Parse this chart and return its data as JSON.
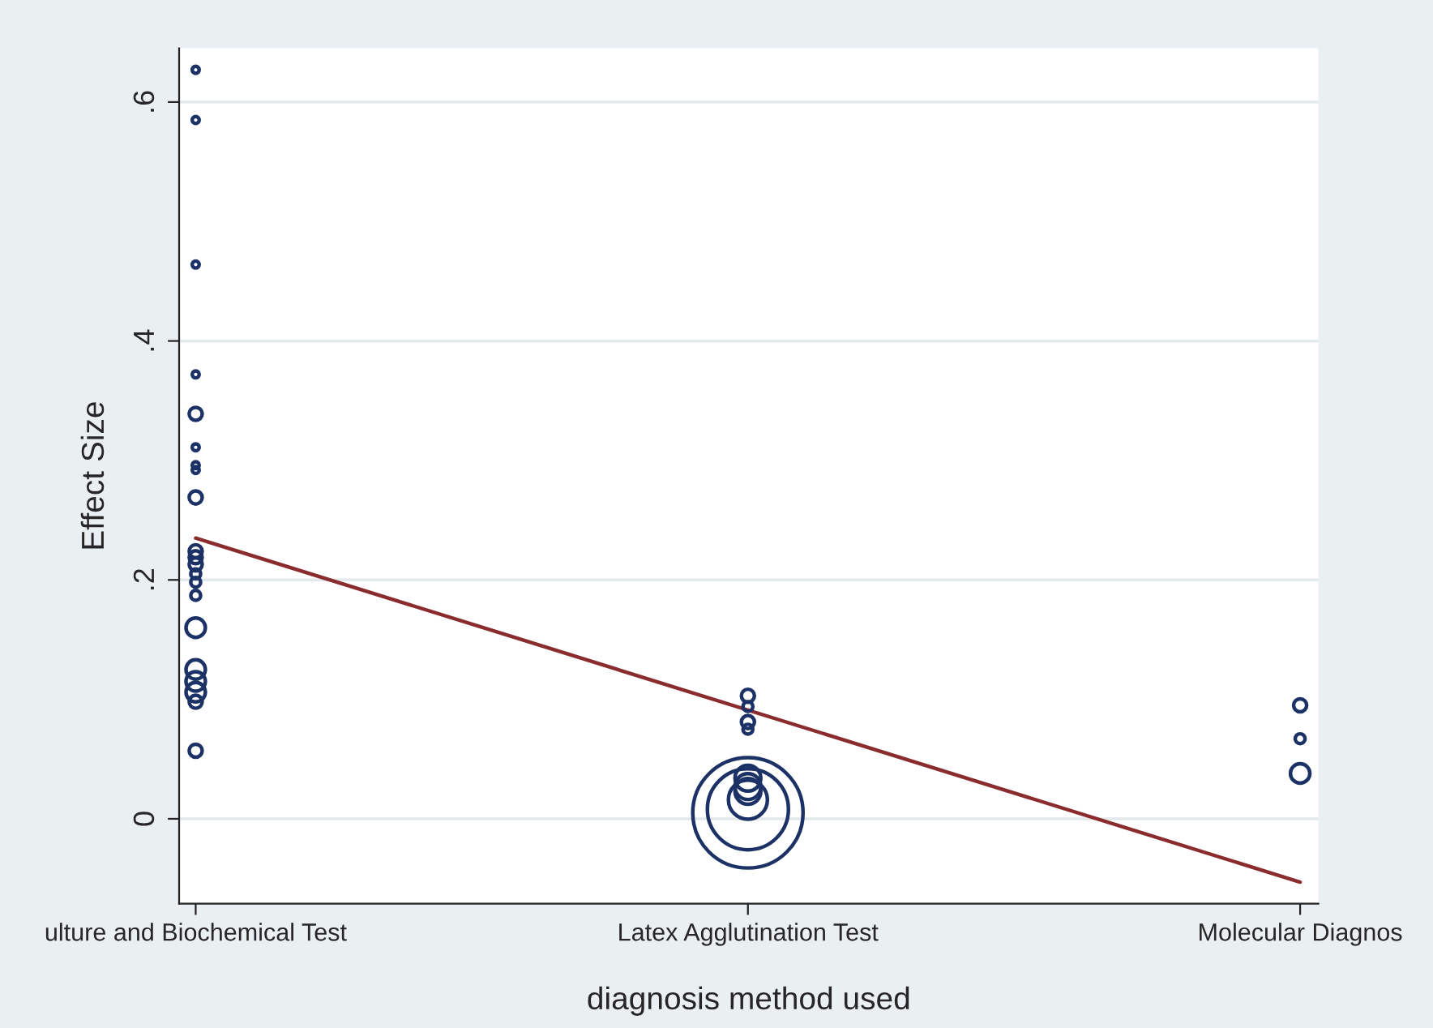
{
  "chart_data": {
    "type": "bubble",
    "xlabel": "diagnosis method used",
    "ylabel": "Effect Size",
    "categories": [
      "ulture and Biochemical Test",
      "Latex Agglutination Test",
      "Molecular Diagnos"
    ],
    "series": [
      {
        "color": "#1c3266",
        "x": [
          "ulture and Biochemical Test",
          "ulture and Biochemical Test",
          "ulture and Biochemical Test",
          "ulture and Biochemical Test",
          "ulture and Biochemical Test",
          "ulture and Biochemical Test",
          "ulture and Biochemical Test",
          "ulture and Biochemical Test",
          "ulture and Biochemical Test",
          "ulture and Biochemical Test",
          "ulture and Biochemical Test",
          "ulture and Biochemical Test",
          "ulture and Biochemical Test",
          "ulture and Biochemical Test",
          "ulture and Biochemical Test",
          "ulture and Biochemical Test",
          "ulture and Biochemical Test",
          "ulture and Biochemical Test",
          "ulture and Biochemical Test",
          "ulture and Biochemical Test",
          "ulture and Biochemical Test",
          "Latex Agglutination Test",
          "Latex Agglutination Test",
          "Latex Agglutination Test",
          "Latex Agglutination Test",
          "Latex Agglutination Test",
          "Latex Agglutination Test",
          "Latex Agglutination Test",
          "Latex Agglutination Test",
          "Latex Agglutination Test",
          "Latex Agglutination Test",
          "Molecular Diagnos",
          "Molecular Diagnos",
          "Molecular Diagnos"
        ],
        "values": [
          0.627,
          0.585,
          0.464,
          0.372,
          0.339,
          0.311,
          0.296,
          0.292,
          0.269,
          0.224,
          0.219,
          0.213,
          0.205,
          0.198,
          0.187,
          0.16,
          0.125,
          0.115,
          0.106,
          0.098,
          0.057,
          0.103,
          0.094,
          0.081,
          0.075,
          0.034,
          0.027,
          0.023,
          0.016,
          0.008,
          0.005,
          0.095,
          0.067,
          0.038
        ],
        "sizes": [
          0.004,
          0.004,
          0.004,
          0.004,
          0.014,
          0.004,
          0.004,
          0.004,
          0.014,
          0.014,
          0.014,
          0.014,
          0.008,
          0.008,
          0.008,
          0.031,
          0.031,
          0.031,
          0.031,
          0.014,
          0.014,
          0.014,
          0.008,
          0.014,
          0.008,
          0.055,
          0.055,
          0.055,
          0.125,
          0.54,
          1,
          0.014,
          0.008,
          0.031
        ]
      },
      {
        "type": "line",
        "color": "#8a2b2e",
        "x": [
          "ulture and Biochemical Test",
          "Molecular Diagnos"
        ],
        "values": [
          0.235,
          -0.053
        ]
      }
    ],
    "ylim": [
      -0.071,
      0.645
    ],
    "yticks": [
      {
        "value": 0,
        "label": "0"
      },
      {
        "value": 0.2,
        "label": ".2"
      },
      {
        "value": 0.4,
        "label": ".4"
      },
      {
        "value": 0.6,
        "label": ".6"
      }
    ],
    "grid": "y"
  }
}
